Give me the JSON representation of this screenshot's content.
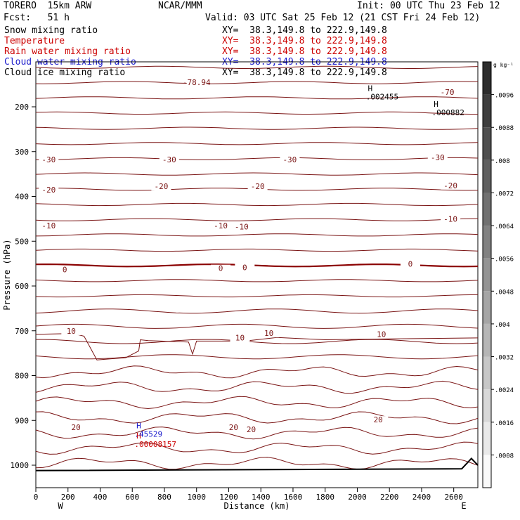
{
  "header": {
    "model": "TORERO  15km ARW",
    "center": "NCAR/MMM",
    "init": "Init: 00 UTC Thu 23 Feb 12",
    "fcst": "Fcst:   51 h",
    "valid": "Valid: 03 UTC Sat 25 Feb 12 (21 CST Fri 24 Feb 12)"
  },
  "fields": [
    {
      "name": "Snow mixing ratio",
      "xy": "XY=  38.3,149.8 to 222.9,149.8",
      "color": "#000000"
    },
    {
      "name": "Temperature",
      "xy": "XY=  38.3,149.8 to 222.9,149.8",
      "color": "#cc0000"
    },
    {
      "name": "Rain water mixing ratio",
      "xy": "XY=  38.3,149.8 to 222.9,149.8",
      "color": "#cc0000"
    },
    {
      "name": "Cloud water mixing ratio",
      "xy": "XY=  38.3,149.8 to 222.9,149.8",
      "color": "#1a1acc"
    },
    {
      "name": "Cloud ice mixing ratio",
      "xy": "XY=  38.3,149.8 to 222.9,149.8",
      "color": "#000000"
    }
  ],
  "chart_data": {
    "type": "contour cross-section",
    "xlabel": "Distance (km)",
    "ylabel": "Pressure (hPa)",
    "x_ticks": [
      0,
      200,
      400,
      600,
      800,
      1000,
      1200,
      1400,
      1600,
      1800,
      2000,
      2200,
      2400,
      2600
    ],
    "y_ticks": [
      200,
      300,
      400,
      500,
      600,
      700,
      800,
      900,
      1000
    ],
    "xlim": [
      0,
      2750
    ],
    "ylim_pressure": [
      1050,
      110
    ],
    "end_labels": {
      "left": "W",
      "right": "E"
    },
    "colorbar": {
      "unit": "g kg⁻¹",
      "ticks": [
        ".0096",
        ".0088",
        ".008",
        ".0072",
        ".0064",
        ".0056",
        ".0048",
        ".004",
        ".0032",
        ".0024",
        ".0016",
        ".0008"
      ]
    },
    "temperature_contour_labels": [
      {
        "text": "-78.94",
        "x": 1000,
        "p": 150
      },
      {
        "text": "-70",
        "x": 2560,
        "p": 172
      },
      {
        "text": "-30",
        "x": 80,
        "p": 322
      },
      {
        "text": "-30",
        "x": 830,
        "p": 322
      },
      {
        "text": "-30",
        "x": 1580,
        "p": 322
      },
      {
        "text": "-30",
        "x": 2500,
        "p": 318
      },
      {
        "text": "-20",
        "x": 80,
        "p": 390
      },
      {
        "text": "-20",
        "x": 780,
        "p": 382
      },
      {
        "text": "-20",
        "x": 1380,
        "p": 382
      },
      {
        "text": "-20",
        "x": 2580,
        "p": 380
      },
      {
        "text": "-10",
        "x": 80,
        "p": 470
      },
      {
        "text": "-10",
        "x": 1150,
        "p": 470
      },
      {
        "text": "-10",
        "x": 1280,
        "p": 472
      },
      {
        "text": "-10",
        "x": 2580,
        "p": 455
      },
      {
        "text": "0",
        "x": 180,
        "p": 568
      },
      {
        "text": "0",
        "x": 1150,
        "p": 565
      },
      {
        "text": "0",
        "x": 1300,
        "p": 563
      },
      {
        "text": "0",
        "x": 2330,
        "p": 555
      },
      {
        "text": "10",
        "x": 220,
        "p": 705
      },
      {
        "text": "10",
        "x": 1270,
        "p": 720
      },
      {
        "text": "10",
        "x": 1450,
        "p": 710
      },
      {
        "text": "10",
        "x": 2150,
        "p": 712
      },
      {
        "text": "20",
        "x": 250,
        "p": 920
      },
      {
        "text": "20",
        "x": 1230,
        "p": 920
      },
      {
        "text": "20",
        "x": 1340,
        "p": 925
      },
      {
        "text": "20",
        "x": 2130,
        "p": 903
      }
    ],
    "extrema": [
      {
        "mark": "H",
        "value": ".002455",
        "x": 2080,
        "p": 165,
        "color": "#000000"
      },
      {
        "mark": "H",
        "value": ".000882",
        "x": 2490,
        "p": 200,
        "color": "#000000"
      },
      {
        "mark": "H",
        "value": ".00008157",
        "x": 640,
        "p": 940,
        "color": "#cc0000"
      },
      {
        "mark": "H",
        "value": ".45529",
        "x": 640,
        "p": 918,
        "color": "#1a1acc"
      }
    ]
  }
}
